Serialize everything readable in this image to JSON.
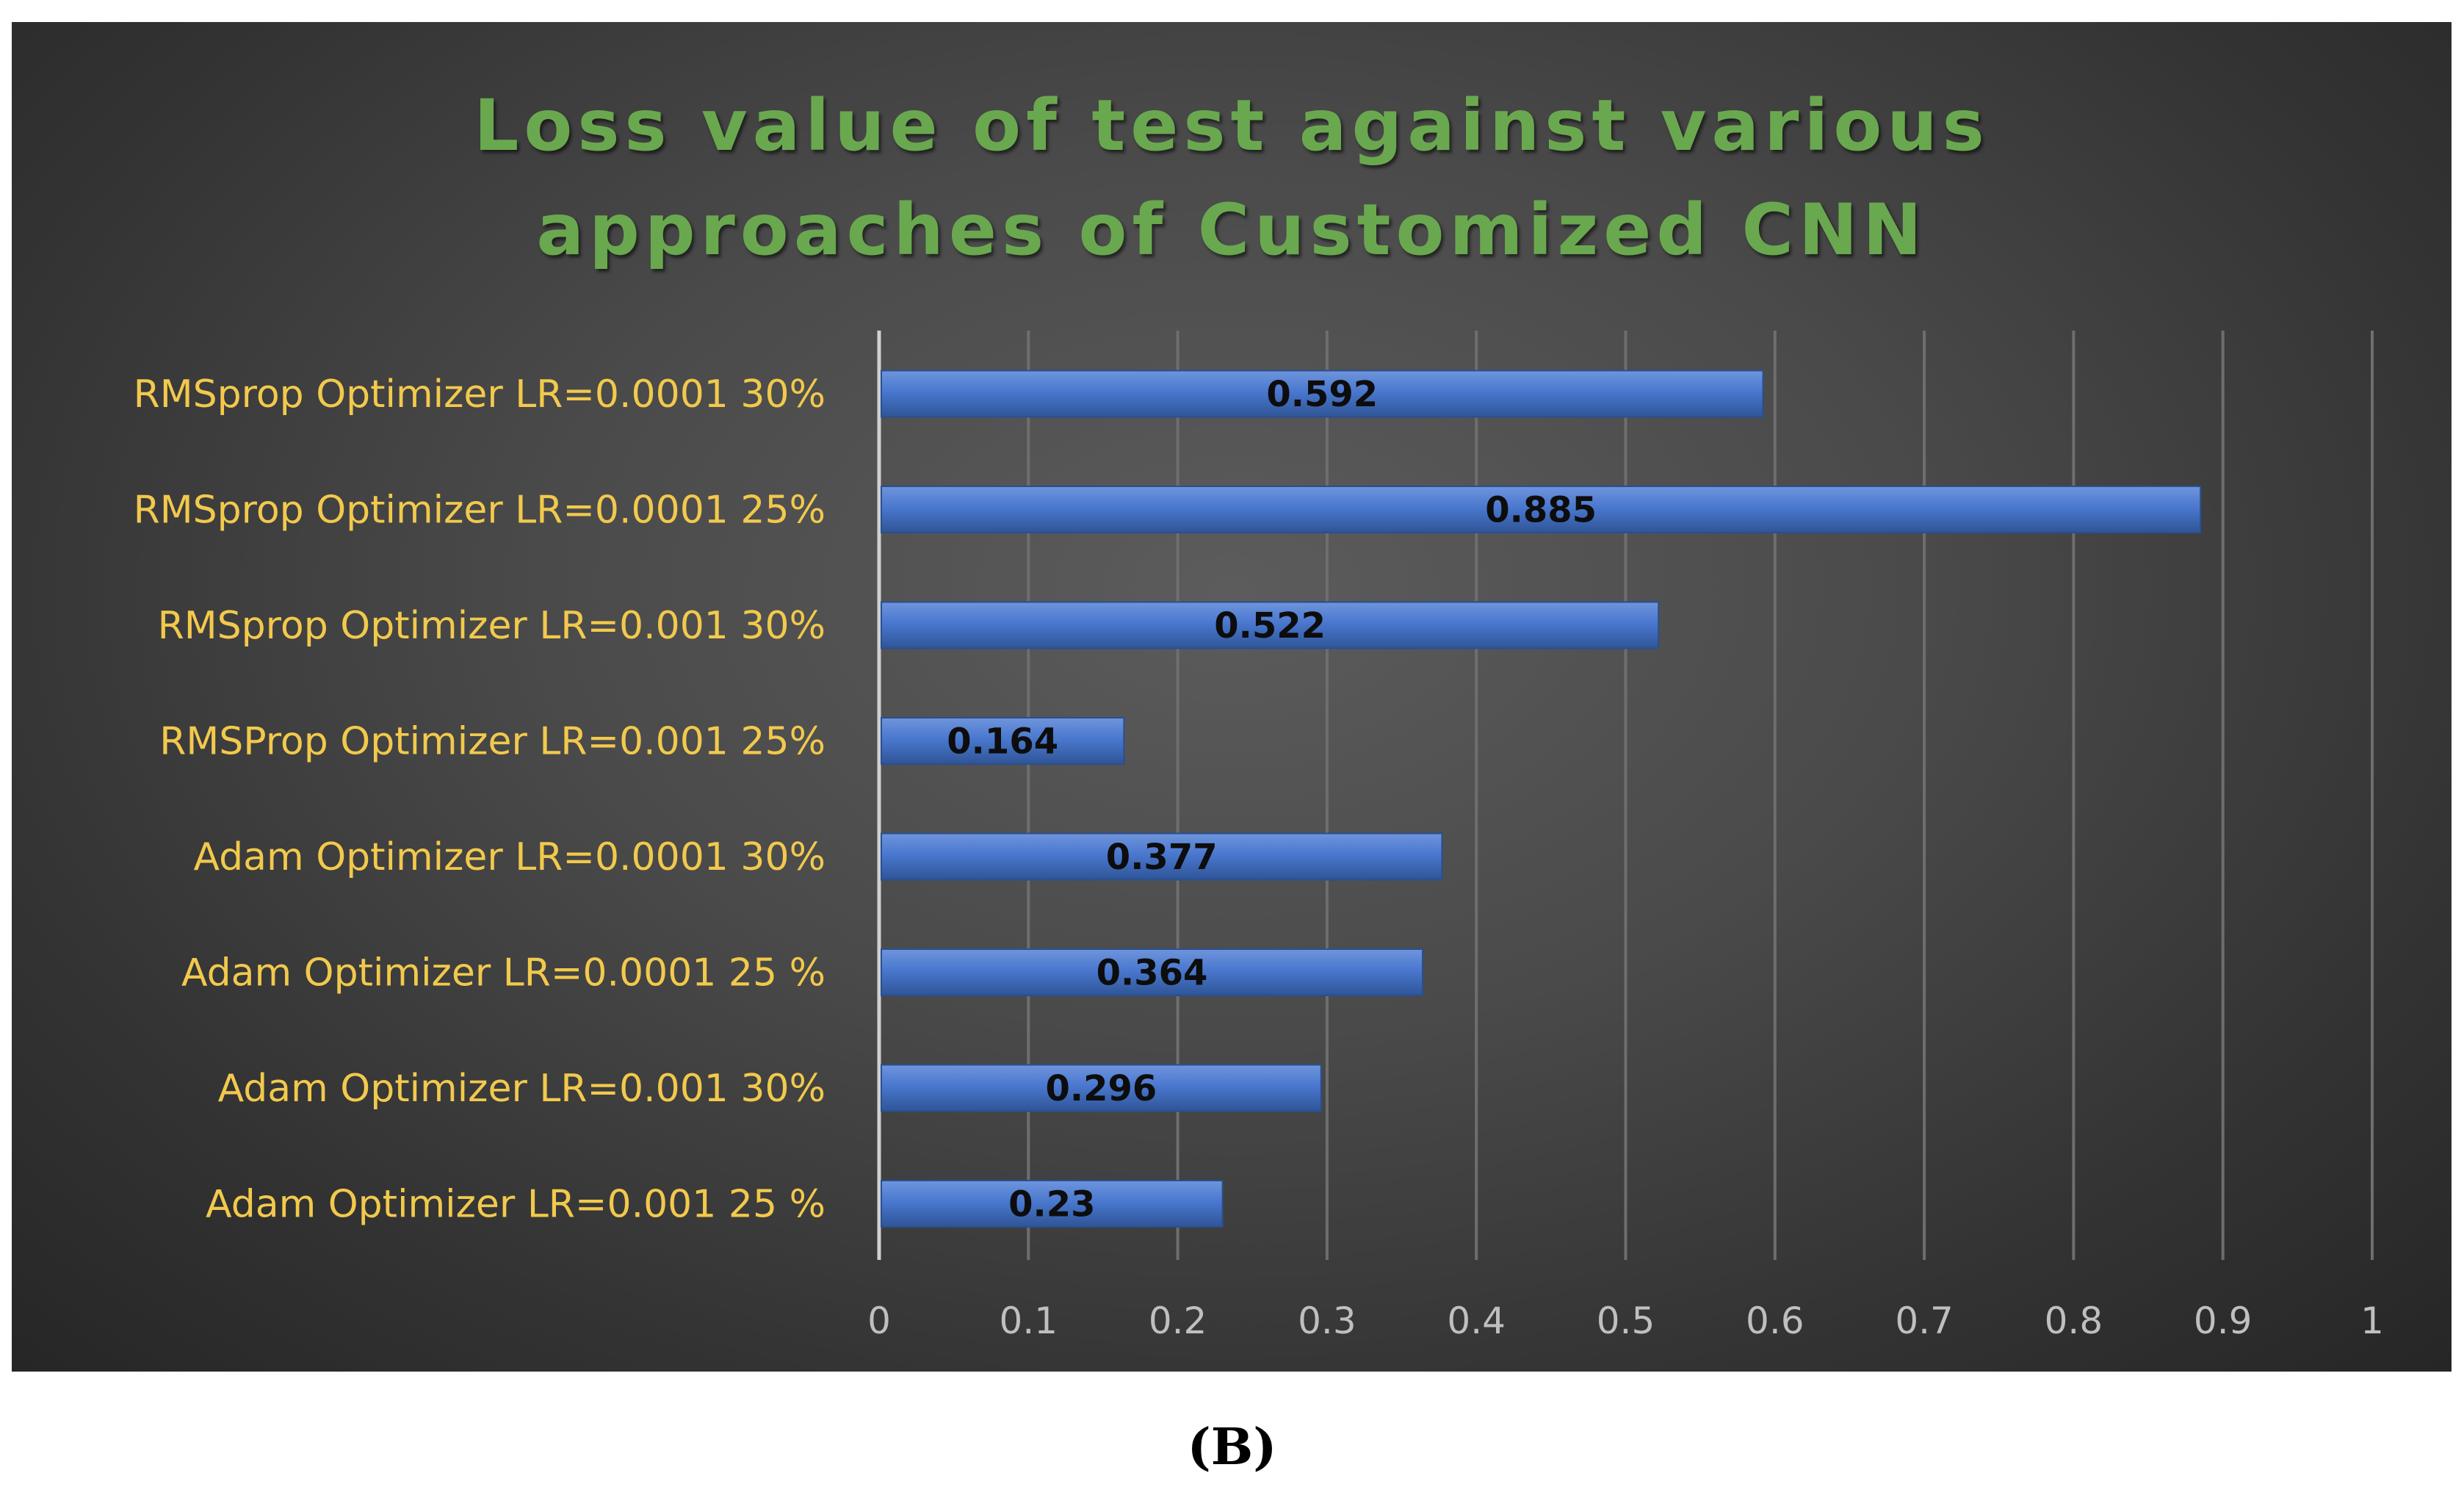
{
  "chart_data": {
    "type": "bar",
    "orientation": "horizontal",
    "title_lines": [
      "Loss value of test against various",
      "approaches of Customized CNN"
    ],
    "categories": [
      "RMSprop Optimizer LR=0.0001 30%",
      "RMSprop Optimizer LR=0.0001 25%",
      "RMSprop Optimizer LR=0.001 30%",
      "RMSProp Optimizer LR=0.001 25%",
      "Adam Optimizer LR=0.0001 30%",
      "Adam Optimizer LR=0.0001 25 %",
      "Adam Optimizer LR=0.001 30%",
      "Adam Optimizer LR=0.001 25 %"
    ],
    "values": [
      0.592,
      0.885,
      0.522,
      0.164,
      0.377,
      0.364,
      0.296,
      0.23
    ],
    "value_labels": [
      "0.592",
      "0.885",
      "0.522",
      "0.164",
      "0.377",
      "0.364",
      "0.296",
      "0.23"
    ],
    "xlim": [
      0,
      1
    ],
    "x_ticks": [
      "0",
      "0.1",
      "0.2",
      "0.3",
      "0.4",
      "0.5",
      "0.6",
      "0.7",
      "0.8",
      "0.9",
      "1"
    ],
    "xlabel": "",
    "ylabel": "",
    "grid": "vertical",
    "legend": "none",
    "colors": {
      "bar": "#4472c4",
      "title": "#6aa84f",
      "category_label": "#f2c94c",
      "tick_label": "#bfbfbf",
      "gridline": "#6e6e6e"
    }
  },
  "caption": {
    "panel_label": "(B)"
  }
}
